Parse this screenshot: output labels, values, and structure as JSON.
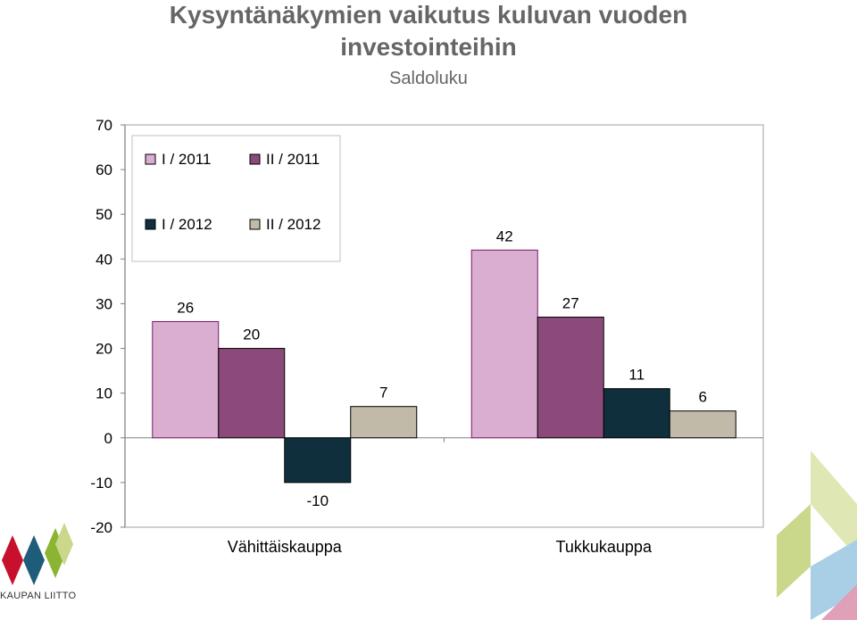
{
  "header": {
    "title_line1": "Kysyntänäkymien vaikutus kuluvan vuoden",
    "title_line2": "investointeihin",
    "subtitle": "Saldoluku"
  },
  "logo": {
    "text": "KAUPAN LIITTO"
  },
  "colors": {
    "series": [
      "#d9aed0",
      "#8c4a7a",
      "#0f2f3d",
      "#c2baa9"
    ],
    "axis": "#808080",
    "grid_border": "#c0c0c0",
    "logo_red": "#c8102e",
    "logo_green": "#8ab432",
    "logo_teal": "#1f5c7a",
    "deco_green": "#c9d88a",
    "deco_blue": "#a8cfe6",
    "deco_pink": "#e0a0b8"
  },
  "chart_data": {
    "type": "bar",
    "categories": [
      "Vähittäiskauppa",
      "Tukkukauppa"
    ],
    "series": [
      {
        "name": "I / 2011",
        "values": [
          26,
          42
        ]
      },
      {
        "name": "II / 2011",
        "values": [
          20,
          27
        ]
      },
      {
        "name": "I / 2012",
        "values": [
          -10,
          11
        ]
      },
      {
        "name": "II / 2012",
        "values": [
          7,
          6
        ]
      }
    ],
    "yticks": [
      70,
      60,
      50,
      40,
      30,
      20,
      10,
      0,
      -10,
      -20
    ],
    "ylim": [
      -20,
      70
    ],
    "grid": false,
    "legend_position": "top-left",
    "data_labels": true
  }
}
